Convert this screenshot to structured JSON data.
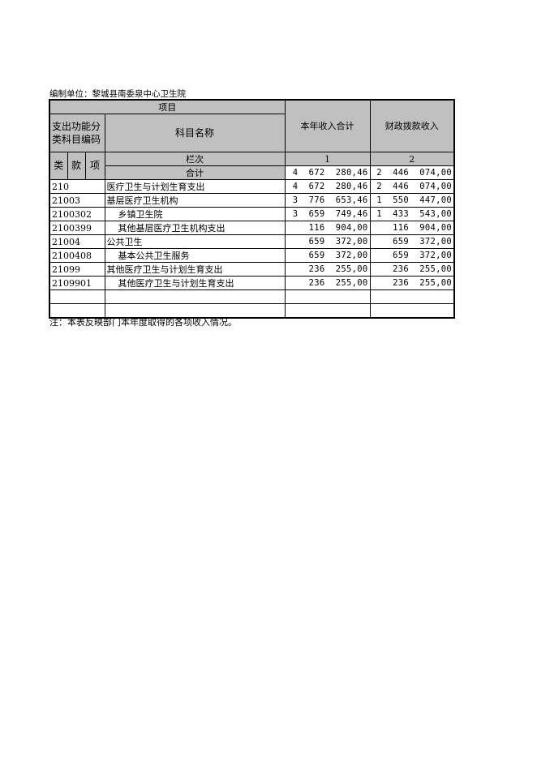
{
  "unit_label": "编制单位：黎城县南委泉中心卫生院",
  "header": {
    "item": "项目",
    "code_group": "支出功能分类科目编码",
    "name": "科目名称",
    "col1": "本年收入合计",
    "col2": "财政拨款收入",
    "lei": "类",
    "kuan": "款",
    "xiang": "项",
    "lanci": "栏次",
    "col1_no": "1",
    "col2_no": "2",
    "total_label": "合计",
    "total_col1": "4  672  280,46",
    "total_col2": "2  446  074,00"
  },
  "rows": [
    {
      "code": "210",
      "name": "医疗卫生与计划生育支出",
      "indent": false,
      "col1": "4  672  280,46",
      "col2": "2  446  074,00"
    },
    {
      "code": "21003",
      "name": "基层医疗卫生机构",
      "indent": false,
      "col1": "3  776  653,46",
      "col2": "1  550  447,00"
    },
    {
      "code": "2100302",
      "name": "乡镇卫生院",
      "indent": true,
      "col1": "3  659  749,46",
      "col2": "1  433  543,00"
    },
    {
      "code": "2100399",
      "name": "其他基层医疗卫生机构支出",
      "indent": true,
      "col1": "116  904,00",
      "col2": "116  904,00"
    },
    {
      "code": "21004",
      "name": "公共卫生",
      "indent": false,
      "col1": "659  372,00",
      "col2": "659  372,00"
    },
    {
      "code": "2100408",
      "name": "基本公共卫生服务",
      "indent": true,
      "col1": "659  372,00",
      "col2": "659  372,00"
    },
    {
      "code": "21099",
      "name": "其他医疗卫生与计划生育支出",
      "indent": false,
      "col1": "236  255,00",
      "col2": "236  255,00"
    },
    {
      "code": "2109901",
      "name": "其他医疗卫生与计划生育支出",
      "indent": true,
      "col1": "236  255,00",
      "col2": "236  255,00"
    }
  ],
  "note": "注：本表反映部门本年度取得的各项收入情况。"
}
